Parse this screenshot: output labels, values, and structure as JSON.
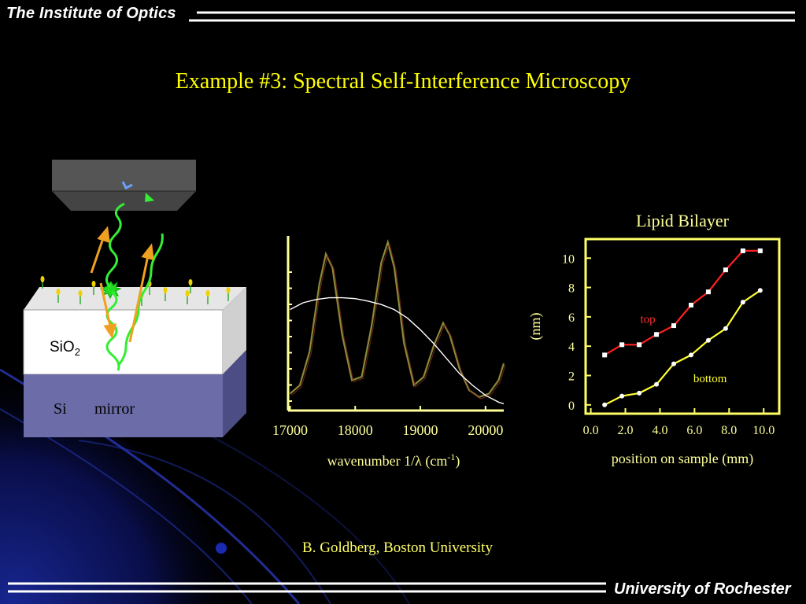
{
  "header": {
    "brand": "The Institute of Optics"
  },
  "footer": {
    "brand": "University of Rochester"
  },
  "slide": {
    "title": "Example #3:  Spectral Self-Interference Microscopy",
    "credit": "B. Goldberg,  Boston University"
  },
  "diagram": {
    "sio2_label": "SiO",
    "sio2_sub": "2",
    "si_label": "Si",
    "mirror_label": "mirror"
  },
  "spectrum_chart": {
    "xlabel_prefix": "wavenumber 1/",
    "xlabel_lambda": "λ",
    "xlabel_unit": " (cm",
    "xlabel_exp": "-1",
    "xlabel_close": ")"
  },
  "chart_data": [
    {
      "type": "line",
      "xlabel": "wavenumber 1/λ (cm-1)",
      "xticks": [
        "17000",
        "18000",
        "19000",
        "20000"
      ],
      "xlim": [
        16970,
        20280
      ],
      "series": [
        {
          "color": "#8a8a3a",
          "x": [
            17000,
            17150,
            17300,
            17450,
            17550,
            17650,
            17800,
            17950,
            18100,
            18250,
            18400,
            18500,
            18600,
            18750,
            18900,
            19050,
            19200,
            19350,
            19450,
            19600,
            19750,
            19900,
            20050,
            20200,
            20280
          ],
          "y": [
            0.1,
            0.15,
            0.35,
            0.75,
            0.93,
            0.85,
            0.45,
            0.18,
            0.2,
            0.5,
            0.88,
            1.0,
            0.85,
            0.4,
            0.15,
            0.2,
            0.38,
            0.52,
            0.45,
            0.25,
            0.12,
            0.08,
            0.1,
            0.18,
            0.28
          ]
        },
        {
          "color": "#ffffff",
          "x": [
            17000,
            17200,
            17400,
            17600,
            17800,
            18000,
            18200,
            18400,
            18600,
            18800,
            19000,
            19200,
            19400,
            19600,
            19800,
            20000,
            20200,
            20280
          ],
          "y": [
            0.6,
            0.64,
            0.66,
            0.67,
            0.67,
            0.665,
            0.65,
            0.63,
            0.6,
            0.55,
            0.48,
            0.4,
            0.31,
            0.22,
            0.15,
            0.09,
            0.05,
            0.04
          ]
        }
      ]
    },
    {
      "type": "line",
      "title": "Lipid Bilayer",
      "xlabel": "position on sample (mm)",
      "ylabel": "(nm)",
      "xticks": [
        "0.0",
        "2.0",
        "4.0",
        "6.0",
        "8.0",
        "10.0"
      ],
      "yticks": [
        "0",
        "2",
        "4",
        "6",
        "8",
        "10"
      ],
      "xlim": [
        -0.3,
        10.9
      ],
      "ylim": [
        -0.6,
        11.3
      ],
      "series": [
        {
          "name": "top",
          "color": "#ff2020",
          "x": [
            0.8,
            1.8,
            2.8,
            3.8,
            4.8,
            5.8,
            6.8,
            7.8,
            8.8,
            9.8
          ],
          "y": [
            3.4,
            4.1,
            4.1,
            4.8,
            5.4,
            6.8,
            7.7,
            9.2,
            10.5,
            10.5
          ]
        },
        {
          "name": "bottom",
          "color": "#ffff33",
          "x": [
            0.8,
            1.8,
            2.8,
            3.8,
            4.8,
            5.8,
            6.8,
            7.8,
            8.8,
            9.8
          ],
          "y": [
            0.0,
            0.6,
            0.8,
            1.4,
            2.8,
            3.4,
            4.4,
            5.2,
            7.0,
            7.8
          ]
        }
      ]
    }
  ]
}
